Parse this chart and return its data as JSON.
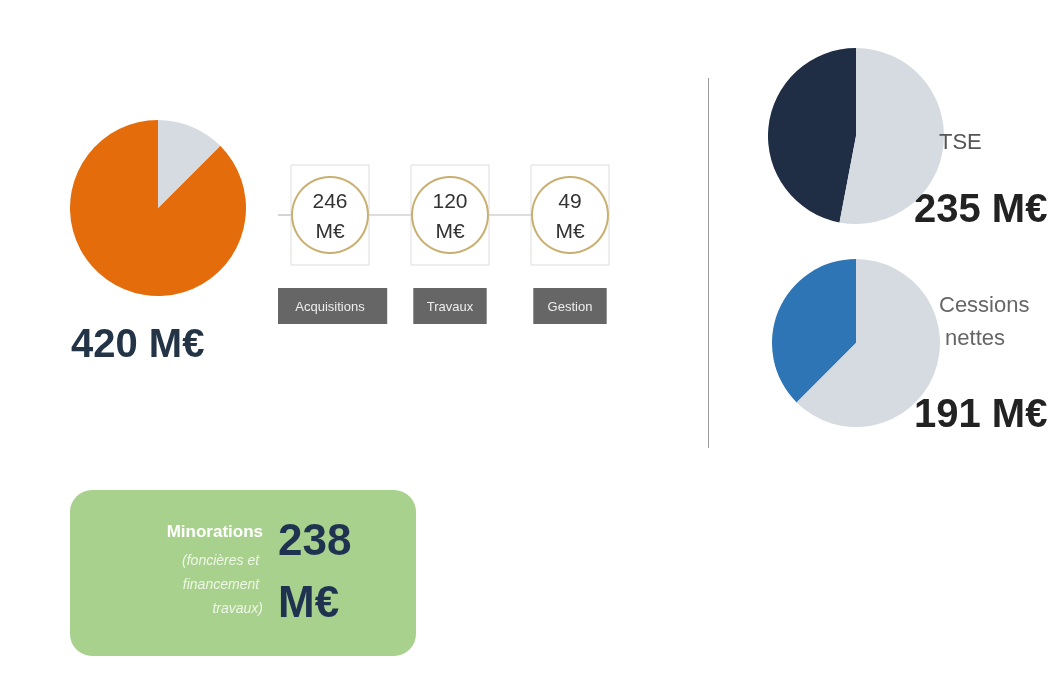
{
  "chart_data": [
    {
      "type": "pie",
      "title": "420 M€",
      "categories": [
        null,
        null
      ],
      "values": [
        87.5,
        12.5
      ],
      "colors": [
        "#e46c0a",
        "#d5dbe1"
      ]
    },
    {
      "type": "other",
      "categories": [
        "Acquisitions",
        "Travaux",
        "Gestion"
      ],
      "value_labels": [
        "246 M€",
        "120 M€",
        "49 M€"
      ]
    },
    {
      "type": "pie",
      "title": "TSE",
      "annotations": [
        "235 M€"
      ],
      "categories": [
        null,
        null
      ],
      "values": [
        47,
        53
      ],
      "colors": [
        "#1f2d45",
        "#d5dbe1"
      ]
    },
    {
      "type": "pie",
      "title": "Cessions nettes",
      "annotations": [
        "191 M€"
      ],
      "categories": [
        null,
        null
      ],
      "values": [
        37.5,
        62.5
      ],
      "colors": [
        "#2e75b6",
        "#d5dbe1"
      ]
    },
    {
      "type": "other",
      "title": "Minorations",
      "subtitle": "(foncières et financement travaux)",
      "annotations": [
        "238 M€"
      ],
      "color": "#a9d18e"
    }
  ]
}
